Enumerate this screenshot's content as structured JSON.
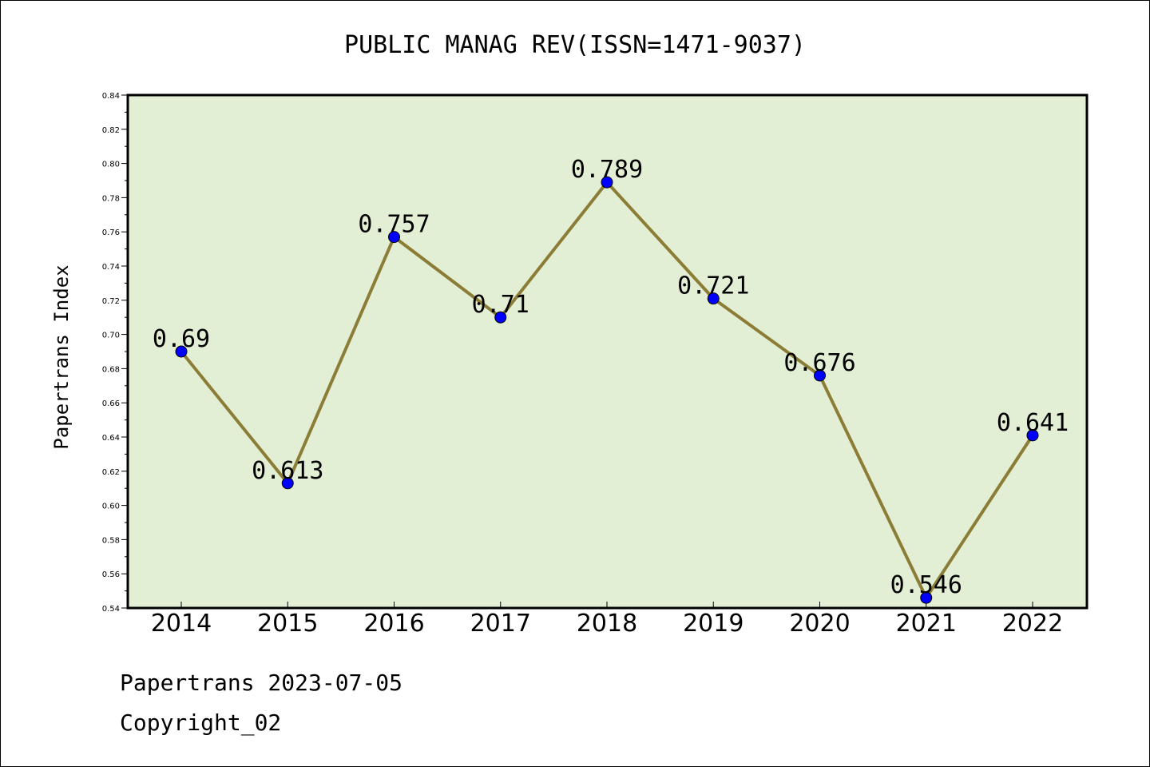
{
  "chart_data": {
    "type": "line",
    "title": "PUBLIC MANAG REV(ISSN=1471-9037)",
    "xlabel": "",
    "ylabel": "Papertrans Index",
    "categories": [
      "2014",
      "2015",
      "2016",
      "2017",
      "2018",
      "2019",
      "2020",
      "2021",
      "2022"
    ],
    "values": [
      0.69,
      0.613,
      0.757,
      0.71,
      0.789,
      0.721,
      0.676,
      0.546,
      0.641
    ],
    "data_labels": [
      "0.69",
      "0.613",
      "0.757",
      "0.71",
      "0.789",
      "0.721",
      "0.676",
      "0.546",
      "0.641"
    ],
    "ylim": [
      0.54,
      0.84
    ],
    "yticks": [
      "0.54",
      "0.56",
      "0.58",
      "0.60",
      "0.62",
      "0.64",
      "0.66",
      "0.68",
      "0.70",
      "0.72",
      "0.74",
      "0.76",
      "0.78",
      "0.80",
      "0.82",
      "0.84"
    ],
    "grid": false,
    "colors": {
      "plot_background": "#e2efd5",
      "line": "#8b7d35",
      "marker": "#0000ff"
    }
  },
  "footer": {
    "line1": "Papertrans 2023-07-05",
    "line2": "Copyright_02"
  }
}
